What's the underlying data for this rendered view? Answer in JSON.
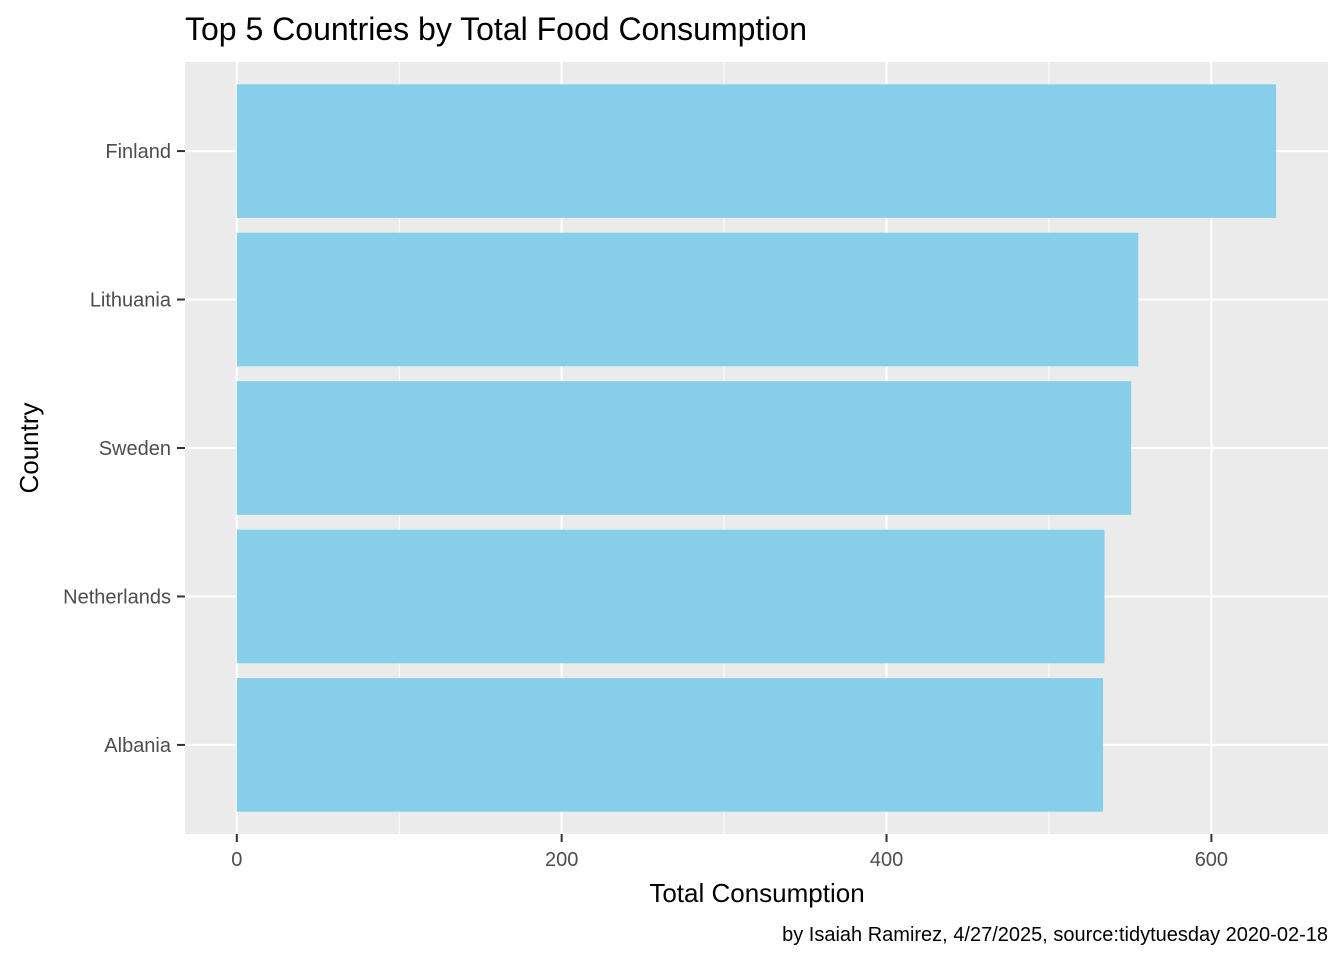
{
  "chart_data": {
    "type": "bar",
    "orientation": "horizontal",
    "title": "Top 5 Countries by Total Food Consumption",
    "xlabel": "Total Consumption",
    "ylabel": "Country",
    "caption": "by Isaiah Ramirez, 4/27/2025, source:tidytuesday 2020-02-18",
    "categories": [
      "Finland",
      "Lithuania",
      "Sweden",
      "Netherlands",
      "Albania"
    ],
    "values": [
      639.8,
      555.0,
      550.6,
      534.2,
      533.3
    ],
    "xlim": [
      -31.9,
      671.8
    ],
    "xticks": [
      0,
      200,
      400,
      600
    ],
    "xtick_labels": [
      "0",
      "200",
      "400",
      "600"
    ],
    "bar_color": "#87CEEB",
    "panel_background": "#EBEBEB",
    "grid_color": "#FFFFFF",
    "grid": true
  }
}
